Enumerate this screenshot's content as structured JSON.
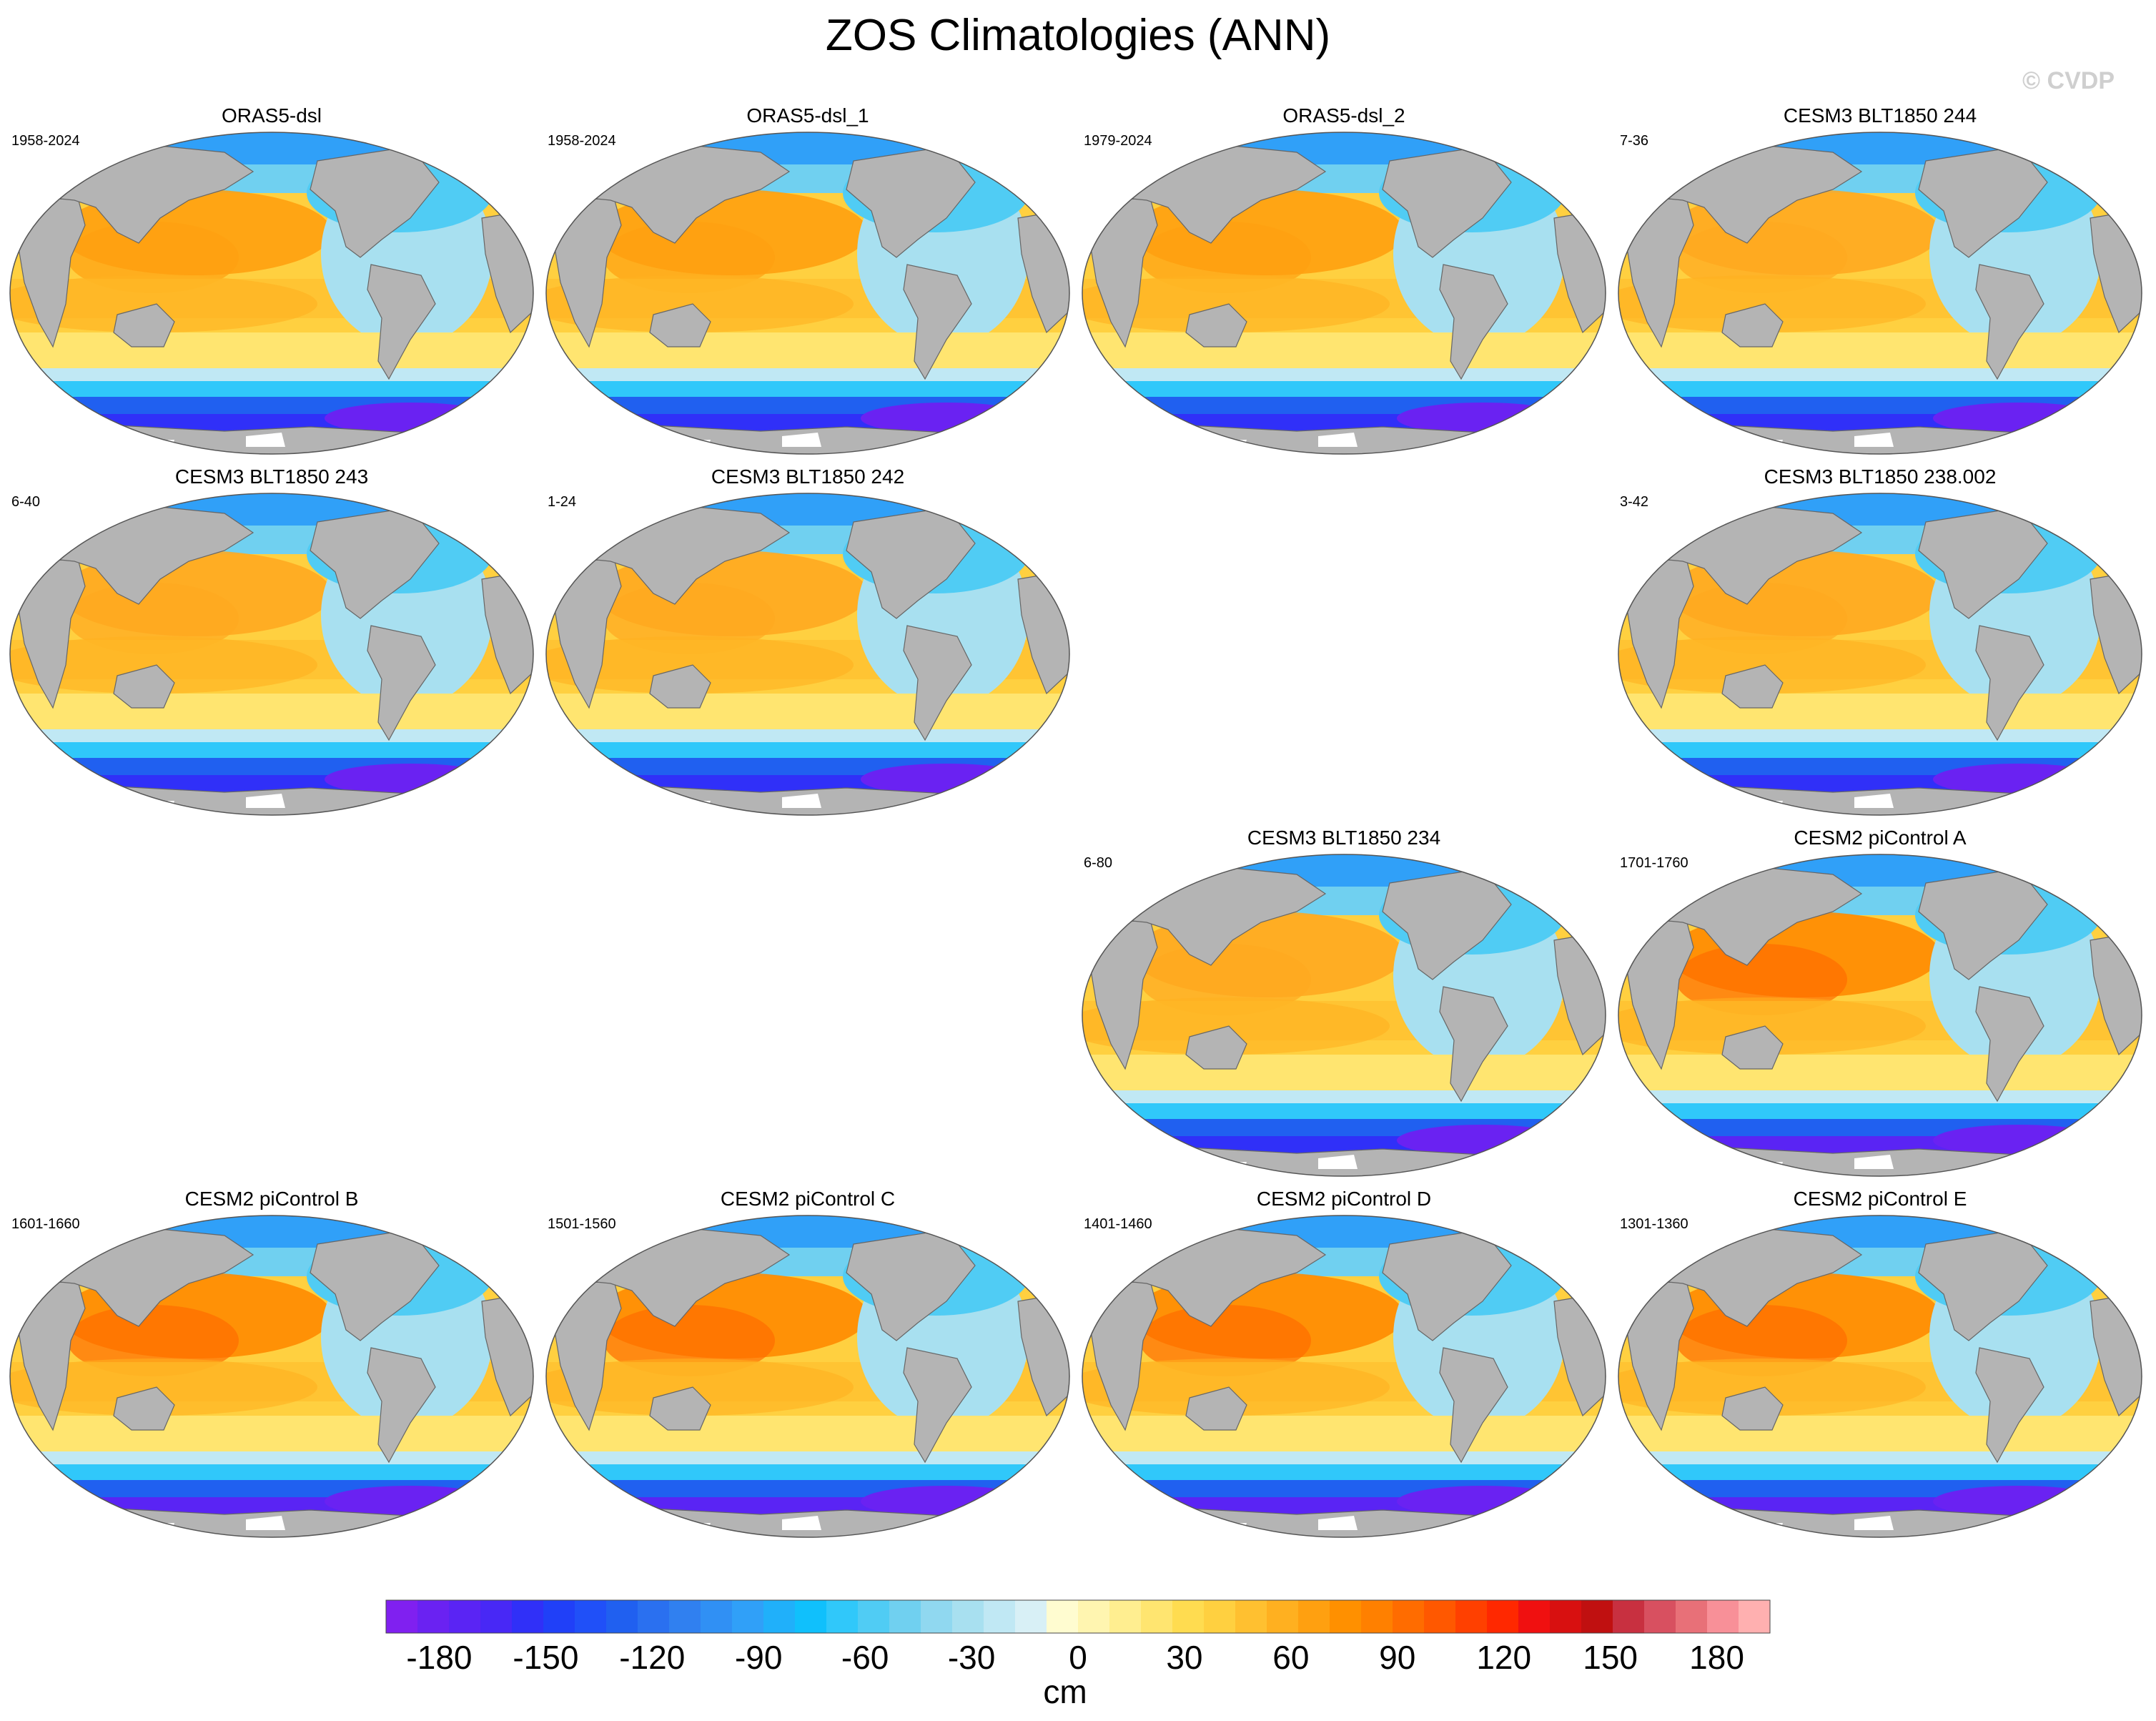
{
  "title": "ZOS Climatologies (ANN)",
  "watermark": "© CVDP",
  "chart_data": {
    "type": "heatmap",
    "title": "ZOS Climatologies (ANN)",
    "projection": "robinson",
    "variable": "ZOS",
    "units": "cm",
    "panels": [
      {
        "name": "ORAS5-dsl",
        "years": "1958-2024",
        "row": 0,
        "col": 0,
        "style": "obs"
      },
      {
        "name": "ORAS5-dsl_1",
        "years": "1958-2024",
        "row": 0,
        "col": 1,
        "style": "obs"
      },
      {
        "name": "ORAS5-dsl_2",
        "years": "1979-2024",
        "row": 0,
        "col": 2,
        "style": "obs"
      },
      {
        "name": "CESM3 BLT1850 244",
        "years": "7-36",
        "row": 0,
        "col": 3,
        "style": "cesm3"
      },
      {
        "name": "CESM3 BLT1850 243",
        "years": "6-40",
        "row": 1,
        "col": 0,
        "style": "cesm3"
      },
      {
        "name": "CESM3 BLT1850 242",
        "years": "1-24",
        "row": 1,
        "col": 1,
        "style": "cesm3"
      },
      {
        "name": "CESM3 BLT1850 238.002",
        "years": "3-42",
        "row": 1,
        "col": 3,
        "style": "cesm3"
      },
      {
        "name": "CESM3 BLT1850 234",
        "years": "6-80",
        "row": 2,
        "col": 2,
        "style": "cesm3"
      },
      {
        "name": "CESM2 piControl A",
        "years": "1701-1760",
        "row": 2,
        "col": 3,
        "style": "cesm2"
      },
      {
        "name": "CESM2 piControl B",
        "years": "1601-1660",
        "row": 3,
        "col": 0,
        "style": "cesm2"
      },
      {
        "name": "CESM2 piControl C",
        "years": "1501-1560",
        "row": 3,
        "col": 1,
        "style": "cesm2"
      },
      {
        "name": "CESM2 piControl D",
        "years": "1401-1460",
        "row": 3,
        "col": 2,
        "style": "cesm2"
      },
      {
        "name": "CESM2 piControl E",
        "years": "1301-1360",
        "row": 3,
        "col": 3,
        "style": "cesm2"
      }
    ],
    "colorbar": {
      "label": "cm",
      "min": -195,
      "max": 195,
      "step": 10,
      "ticks": [
        -180,
        -150,
        -120,
        -90,
        -60,
        -30,
        0,
        30,
        60,
        90,
        120,
        150,
        180
      ],
      "tick_labels": [
        "-180",
        "-150",
        "-120",
        "-90",
        "-60",
        "-30",
        "0",
        "30",
        "60",
        "90",
        "120",
        "150",
        "180"
      ],
      "colors": [
        "#8020f0",
        "#6a22f2",
        "#5a24f4",
        "#4828f6",
        "#3030f8",
        "#2040f8",
        "#2050f8",
        "#2060f0",
        "#2a70f0",
        "#3080f0",
        "#3090f4",
        "#30a0f8",
        "#20b0fa",
        "#10c0fc",
        "#30c8fa",
        "#50ccf4",
        "#70d0f0",
        "#90d8f0",
        "#a8e0f0",
        "#c0e8f4",
        "#d8f0f6",
        "#fffcd0",
        "#fff5b0",
        "#ffee90",
        "#ffe570",
        "#ffdc50",
        "#ffd040",
        "#ffc030",
        "#ffb020",
        "#ffa010",
        "#ff9000",
        "#ff8000",
        "#ff6c00",
        "#ff5800",
        "#ff4000",
        "#ff2800",
        "#f01010",
        "#d81010",
        "#c01010",
        "#c83040",
        "#d85060",
        "#e87078",
        "#f89098",
        "#ffb0b0"
      ]
    }
  },
  "colors": {
    "land": "#b4b4b4",
    "ocean_warm": "#ffd040",
    "ocean_hot": "#ff9000",
    "ocean_cool": "#a8e0f0",
    "ocean_cold": "#30a0f8",
    "southern_ocean": "#3030f8",
    "deep_south": "#6a22f2"
  }
}
